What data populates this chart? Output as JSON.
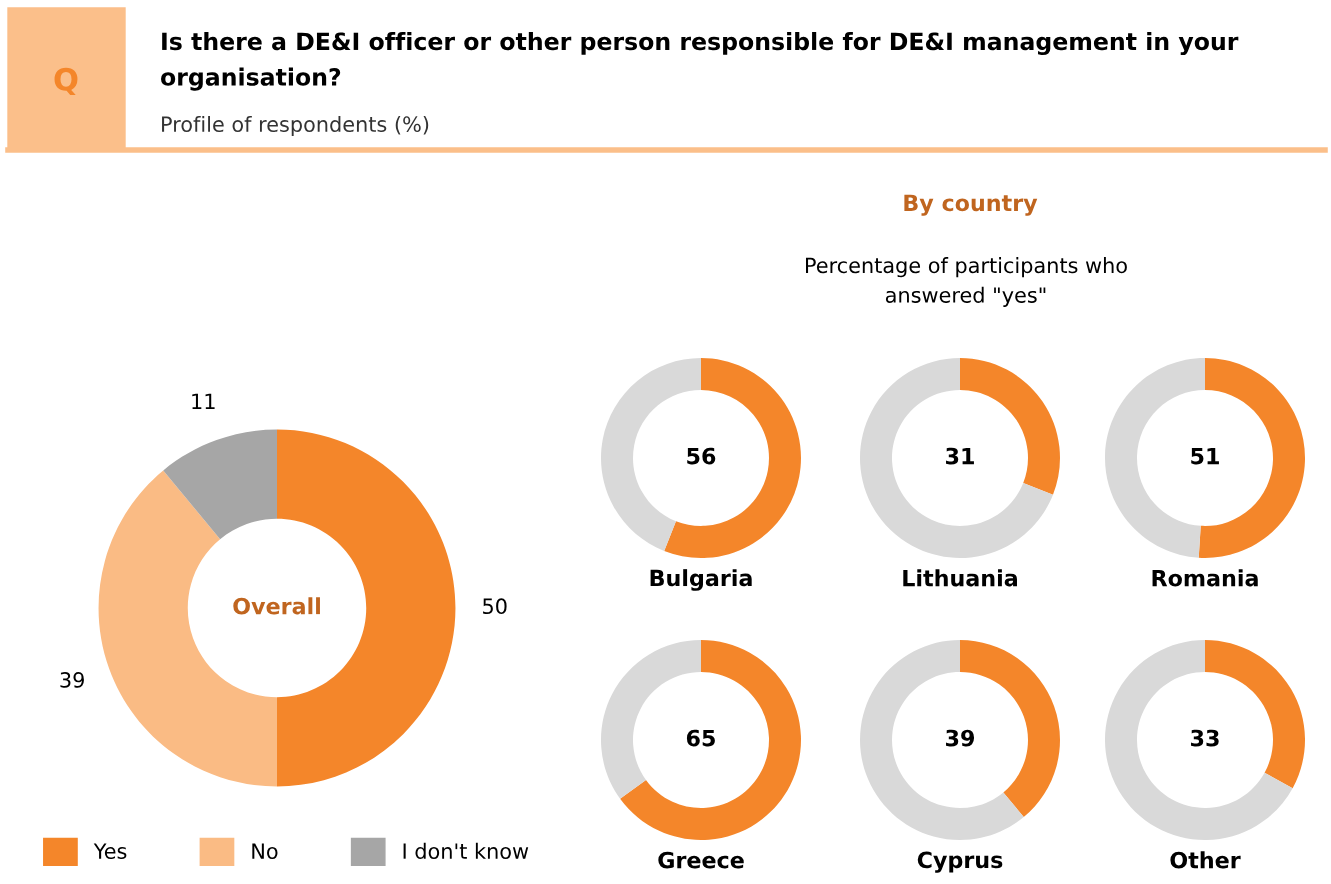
{
  "chart_data": [
    {
      "type": "donut",
      "title": "Is there a DE&I officer or other person responsible for DE&I management in your organisation?",
      "subtitle": "Profile of respondents (%)",
      "annotations": [
        "Q",
        "Overall"
      ],
      "categories": [
        "Yes",
        "No",
        "I don't know"
      ],
      "values": [
        50,
        39,
        11
      ],
      "colors": [
        "#f4862a",
        "#fabb84",
        "#a6a6a6"
      ],
      "data_labels": true,
      "legend": "bottom"
    },
    {
      "type": "other",
      "title": "By country",
      "subtitle": "Percentage of participants who answered \"yes\""
    },
    {
      "type": "donut",
      "title": "Bulgaria",
      "categories": [
        null,
        null
      ],
      "values": [
        56,
        44
      ],
      "colors": [
        "#f4862a",
        "#d9d9d9"
      ],
      "value_labels": [
        "56",
        null
      ]
    },
    {
      "type": "donut",
      "title": "Lithuania",
      "categories": [
        null,
        null
      ],
      "values": [
        31,
        69
      ],
      "colors": [
        "#f4862a",
        "#d9d9d9"
      ],
      "value_labels": [
        "31",
        null
      ]
    },
    {
      "type": "donut",
      "title": "Romania",
      "categories": [
        null,
        null
      ],
      "values": [
        51,
        49
      ],
      "colors": [
        "#f4862a",
        "#d9d9d9"
      ],
      "value_labels": [
        "51",
        null
      ]
    },
    {
      "type": "donut",
      "title": "Greece",
      "categories": [
        null,
        null
      ],
      "values": [
        65,
        35
      ],
      "colors": [
        "#f4862a",
        "#d9d9d9"
      ],
      "value_labels": [
        "65",
        null
      ]
    },
    {
      "type": "donut",
      "title": "Cyprus",
      "categories": [
        null,
        null
      ],
      "values": [
        39,
        61
      ],
      "colors": [
        "#f4862a",
        "#d9d9d9"
      ],
      "value_labels": [
        "39",
        null
      ]
    },
    {
      "type": "donut",
      "title": "Other",
      "categories": [
        null,
        null
      ],
      "values": [
        33,
        67
      ],
      "colors": [
        "#f4862a",
        "#d9d9d9"
      ],
      "value_labels": [
        "33",
        null
      ]
    }
  ]
}
